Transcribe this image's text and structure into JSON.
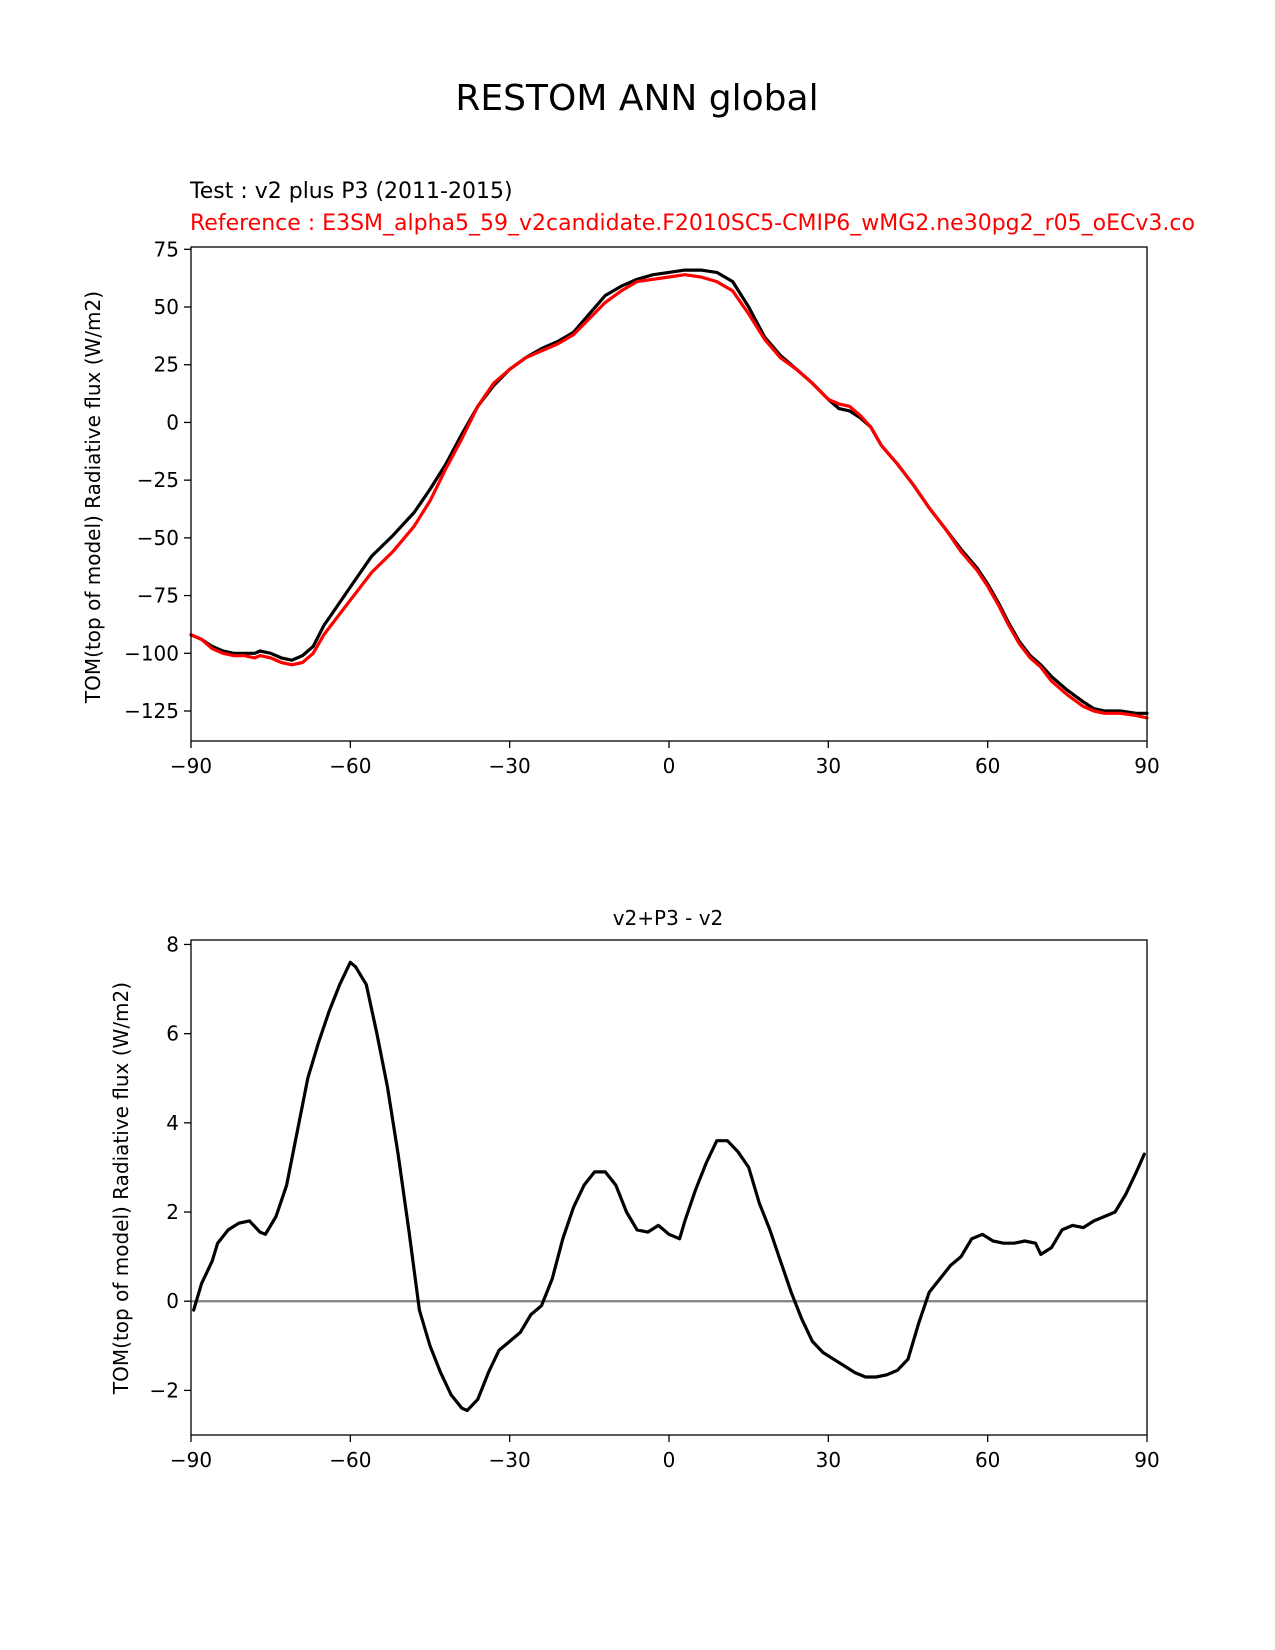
{
  "figure": {
    "suptitle": "RESTOM ANN global"
  },
  "colors": {
    "test": "#000000",
    "reference": "#ff0000",
    "zero_line": "#808080"
  },
  "chart_data": [
    {
      "type": "line",
      "test_label": "Test : v2 plus P3 (2011-2015)",
      "reference_label": "Reference : E3SM_alpha5_59_v2candidate.F2010SC5-CMIP6_wMG2.ne30pg2_r05_oECv3.co",
      "xlabel": "",
      "ylabel": "TOM(top of model) Radiative flux (W/m2)",
      "xlim": [
        -90,
        90
      ],
      "ylim": [
        -138,
        76
      ],
      "xticks": [
        -90,
        -60,
        -30,
        0,
        30,
        60,
        90
      ],
      "xtick_labels": [
        "−90",
        "−60",
        "−30",
        "0",
        "30",
        "60",
        "90"
      ],
      "yticks": [
        75,
        50,
        25,
        0,
        -25,
        -50,
        -75,
        -100,
        -125
      ],
      "ytick_labels": [
        "75",
        "50",
        "25",
        "0",
        "−25",
        "−50",
        "−75",
        "−100",
        "−125"
      ],
      "series": [
        {
          "name": "Test",
          "color": "#000000",
          "points": [
            [
              -90,
              -92
            ],
            [
              -88,
              -94
            ],
            [
              -86,
              -97
            ],
            [
              -84,
              -99
            ],
            [
              -82,
              -100
            ],
            [
              -80,
              -100
            ],
            [
              -78,
              -100
            ],
            [
              -77,
              -99
            ],
            [
              -75,
              -100
            ],
            [
              -73,
              -102
            ],
            [
              -71,
              -103
            ],
            [
              -69,
              -101
            ],
            [
              -67,
              -97
            ],
            [
              -65,
              -88
            ],
            [
              -62,
              -78
            ],
            [
              -59,
              -68
            ],
            [
              -56,
              -58
            ],
            [
              -52,
              -49
            ],
            [
              -48,
              -39
            ],
            [
              -45,
              -29
            ],
            [
              -42,
              -18
            ],
            [
              -39,
              -5
            ],
            [
              -36,
              7
            ],
            [
              -33,
              16
            ],
            [
              -30,
              23
            ],
            [
              -27,
              28
            ],
            [
              -24,
              32
            ],
            [
              -21,
              35
            ],
            [
              -18,
              39
            ],
            [
              -15,
              47
            ],
            [
              -12,
              55
            ],
            [
              -9,
              59
            ],
            [
              -6,
              62
            ],
            [
              -3,
              64
            ],
            [
              0,
              65
            ],
            [
              3,
              66
            ],
            [
              6,
              66
            ],
            [
              9,
              65
            ],
            [
              12,
              61
            ],
            [
              15,
              50
            ],
            [
              18,
              37
            ],
            [
              21,
              29
            ],
            [
              24,
              23
            ],
            [
              27,
              17
            ],
            [
              30,
              10
            ],
            [
              32,
              6
            ],
            [
              34,
              5
            ],
            [
              36,
              2
            ],
            [
              38,
              -2
            ],
            [
              40,
              -10
            ],
            [
              43,
              -18
            ],
            [
              46,
              -27
            ],
            [
              49,
              -37
            ],
            [
              52,
              -46
            ],
            [
              55,
              -55
            ],
            [
              58,
              -63
            ],
            [
              60,
              -70
            ],
            [
              62,
              -78
            ],
            [
              64,
              -87
            ],
            [
              66,
              -95
            ],
            [
              68,
              -101
            ],
            [
              70,
              -105
            ],
            [
              72,
              -110
            ],
            [
              75,
              -116
            ],
            [
              78,
              -121
            ],
            [
              80,
              -124
            ],
            [
              82,
              -125
            ],
            [
              85,
              -125
            ],
            [
              88,
              -126
            ],
            [
              90,
              -126
            ]
          ]
        },
        {
          "name": "Reference",
          "color": "#ff0000",
          "points": [
            [
              -90,
              -92
            ],
            [
              -88,
              -94
            ],
            [
              -86,
              -98
            ],
            [
              -84,
              -100
            ],
            [
              -82,
              -101
            ],
            [
              -80,
              -101
            ],
            [
              -78,
              -102
            ],
            [
              -77,
              -101
            ],
            [
              -75,
              -102
            ],
            [
              -73,
              -104
            ],
            [
              -71,
              -105
            ],
            [
              -69,
              -104
            ],
            [
              -67,
              -100
            ],
            [
              -65,
              -92
            ],
            [
              -62,
              -83
            ],
            [
              -59,
              -74
            ],
            [
              -56,
              -65
            ],
            [
              -52,
              -56
            ],
            [
              -48,
              -45
            ],
            [
              -45,
              -34
            ],
            [
              -42,
              -20
            ],
            [
              -39,
              -7
            ],
            [
              -36,
              7
            ],
            [
              -33,
              17
            ],
            [
              -30,
              23
            ],
            [
              -27,
              28
            ],
            [
              -24,
              31
            ],
            [
              -21,
              34
            ],
            [
              -18,
              38
            ],
            [
              -15,
              45
            ],
            [
              -12,
              52
            ],
            [
              -9,
              57
            ],
            [
              -6,
              61
            ],
            [
              -3,
              62
            ],
            [
              0,
              63
            ],
            [
              3,
              64
            ],
            [
              6,
              63
            ],
            [
              9,
              61
            ],
            [
              12,
              57
            ],
            [
              15,
              47
            ],
            [
              18,
              36
            ],
            [
              21,
              28
            ],
            [
              24,
              23
            ],
            [
              27,
              17
            ],
            [
              30,
              10
            ],
            [
              32,
              8
            ],
            [
              34,
              7
            ],
            [
              36,
              3
            ],
            [
              38,
              -2
            ],
            [
              40,
              -10
            ],
            [
              43,
              -18
            ],
            [
              46,
              -27
            ],
            [
              49,
              -37
            ],
            [
              52,
              -46
            ],
            [
              55,
              -56
            ],
            [
              58,
              -64
            ],
            [
              60,
              -71
            ],
            [
              62,
              -79
            ],
            [
              64,
              -88
            ],
            [
              66,
              -96
            ],
            [
              68,
              -102
            ],
            [
              70,
              -106
            ],
            [
              72,
              -112
            ],
            [
              75,
              -118
            ],
            [
              78,
              -123
            ],
            [
              80,
              -125
            ],
            [
              82,
              -126
            ],
            [
              85,
              -126
            ],
            [
              88,
              -127
            ],
            [
              90,
              -128
            ]
          ]
        }
      ]
    },
    {
      "type": "line",
      "title": "v2+P3 - v2",
      "xlabel": "",
      "ylabel": "TOM(top of model) Radiative flux (W/m2)",
      "xlim": [
        -90,
        90
      ],
      "ylim": [
        -3,
        8.1
      ],
      "xticks": [
        -90,
        -60,
        -30,
        0,
        30,
        60,
        90
      ],
      "xtick_labels": [
        "−90",
        "−60",
        "−30",
        "0",
        "30",
        "60",
        "90"
      ],
      "yticks": [
        8,
        6,
        4,
        2,
        0,
        -2
      ],
      "ytick_labels": [
        "8",
        "6",
        "4",
        "2",
        "0",
        "−2"
      ],
      "zero_line": true,
      "series": [
        {
          "name": "v2+P3 - v2",
          "color": "#000000",
          "points": [
            [
              -89.5,
              -0.2
            ],
            [
              -88,
              0.4
            ],
            [
              -86,
              0.9
            ],
            [
              -85,
              1.3
            ],
            [
              -83,
              1.6
            ],
            [
              -81,
              1.75
            ],
            [
              -79,
              1.8
            ],
            [
              -77,
              1.55
            ],
            [
              -76,
              1.5
            ],
            [
              -74,
              1.9
            ],
            [
              -72,
              2.6
            ],
            [
              -70,
              3.8
            ],
            [
              -68,
              5.0
            ],
            [
              -66,
              5.8
            ],
            [
              -64,
              6.5
            ],
            [
              -62,
              7.1
            ],
            [
              -60,
              7.6
            ],
            [
              -59,
              7.5
            ],
            [
              -57,
              7.1
            ],
            [
              -55,
              6.0
            ],
            [
              -53,
              4.8
            ],
            [
              -51,
              3.3
            ],
            [
              -49,
              1.6
            ],
            [
              -47,
              -0.2
            ],
            [
              -45,
              -1.0
            ],
            [
              -43,
              -1.6
            ],
            [
              -41,
              -2.1
            ],
            [
              -39,
              -2.4
            ],
            [
              -38,
              -2.45
            ],
            [
              -36,
              -2.2
            ],
            [
              -34,
              -1.6
            ],
            [
              -32,
              -1.1
            ],
            [
              -30,
              -0.9
            ],
            [
              -28,
              -0.7
            ],
            [
              -26,
              -0.3
            ],
            [
              -24,
              -0.1
            ],
            [
              -22,
              0.5
            ],
            [
              -20,
              1.4
            ],
            [
              -18,
              2.1
            ],
            [
              -16,
              2.6
            ],
            [
              -14,
              2.9
            ],
            [
              -12,
              2.9
            ],
            [
              -10,
              2.6
            ],
            [
              -8,
              2.0
            ],
            [
              -6,
              1.6
            ],
            [
              -4,
              1.55
            ],
            [
              -2,
              1.7
            ],
            [
              0,
              1.5
            ],
            [
              2,
              1.4
            ],
            [
              3,
              1.8
            ],
            [
              5,
              2.5
            ],
            [
              7,
              3.1
            ],
            [
              9,
              3.6
            ],
            [
              11,
              3.6
            ],
            [
              13,
              3.35
            ],
            [
              15,
              3.0
            ],
            [
              17,
              2.2
            ],
            [
              19,
              1.6
            ],
            [
              21,
              0.9
            ],
            [
              23,
              0.2
            ],
            [
              25,
              -0.4
            ],
            [
              27,
              -0.9
            ],
            [
              29,
              -1.15
            ],
            [
              31,
              -1.3
            ],
            [
              33,
              -1.45
            ],
            [
              35,
              -1.6
            ],
            [
              37,
              -1.7
            ],
            [
              39,
              -1.7
            ],
            [
              41,
              -1.65
            ],
            [
              43,
              -1.55
            ],
            [
              45,
              -1.3
            ],
            [
              47,
              -0.5
            ],
            [
              49,
              0.2
            ],
            [
              51,
              0.5
            ],
            [
              53,
              0.8
            ],
            [
              55,
              1.0
            ],
            [
              57,
              1.4
            ],
            [
              59,
              1.5
            ],
            [
              61,
              1.35
            ],
            [
              63,
              1.3
            ],
            [
              65,
              1.3
            ],
            [
              67,
              1.35
            ],
            [
              69,
              1.3
            ],
            [
              70,
              1.05
            ],
            [
              72,
              1.2
            ],
            [
              74,
              1.6
            ],
            [
              76,
              1.7
            ],
            [
              78,
              1.65
            ],
            [
              80,
              1.8
            ],
            [
              82,
              1.9
            ],
            [
              84,
              2.0
            ],
            [
              86,
              2.4
            ],
            [
              88,
              2.9
            ],
            [
              89.5,
              3.3
            ]
          ]
        }
      ]
    }
  ]
}
